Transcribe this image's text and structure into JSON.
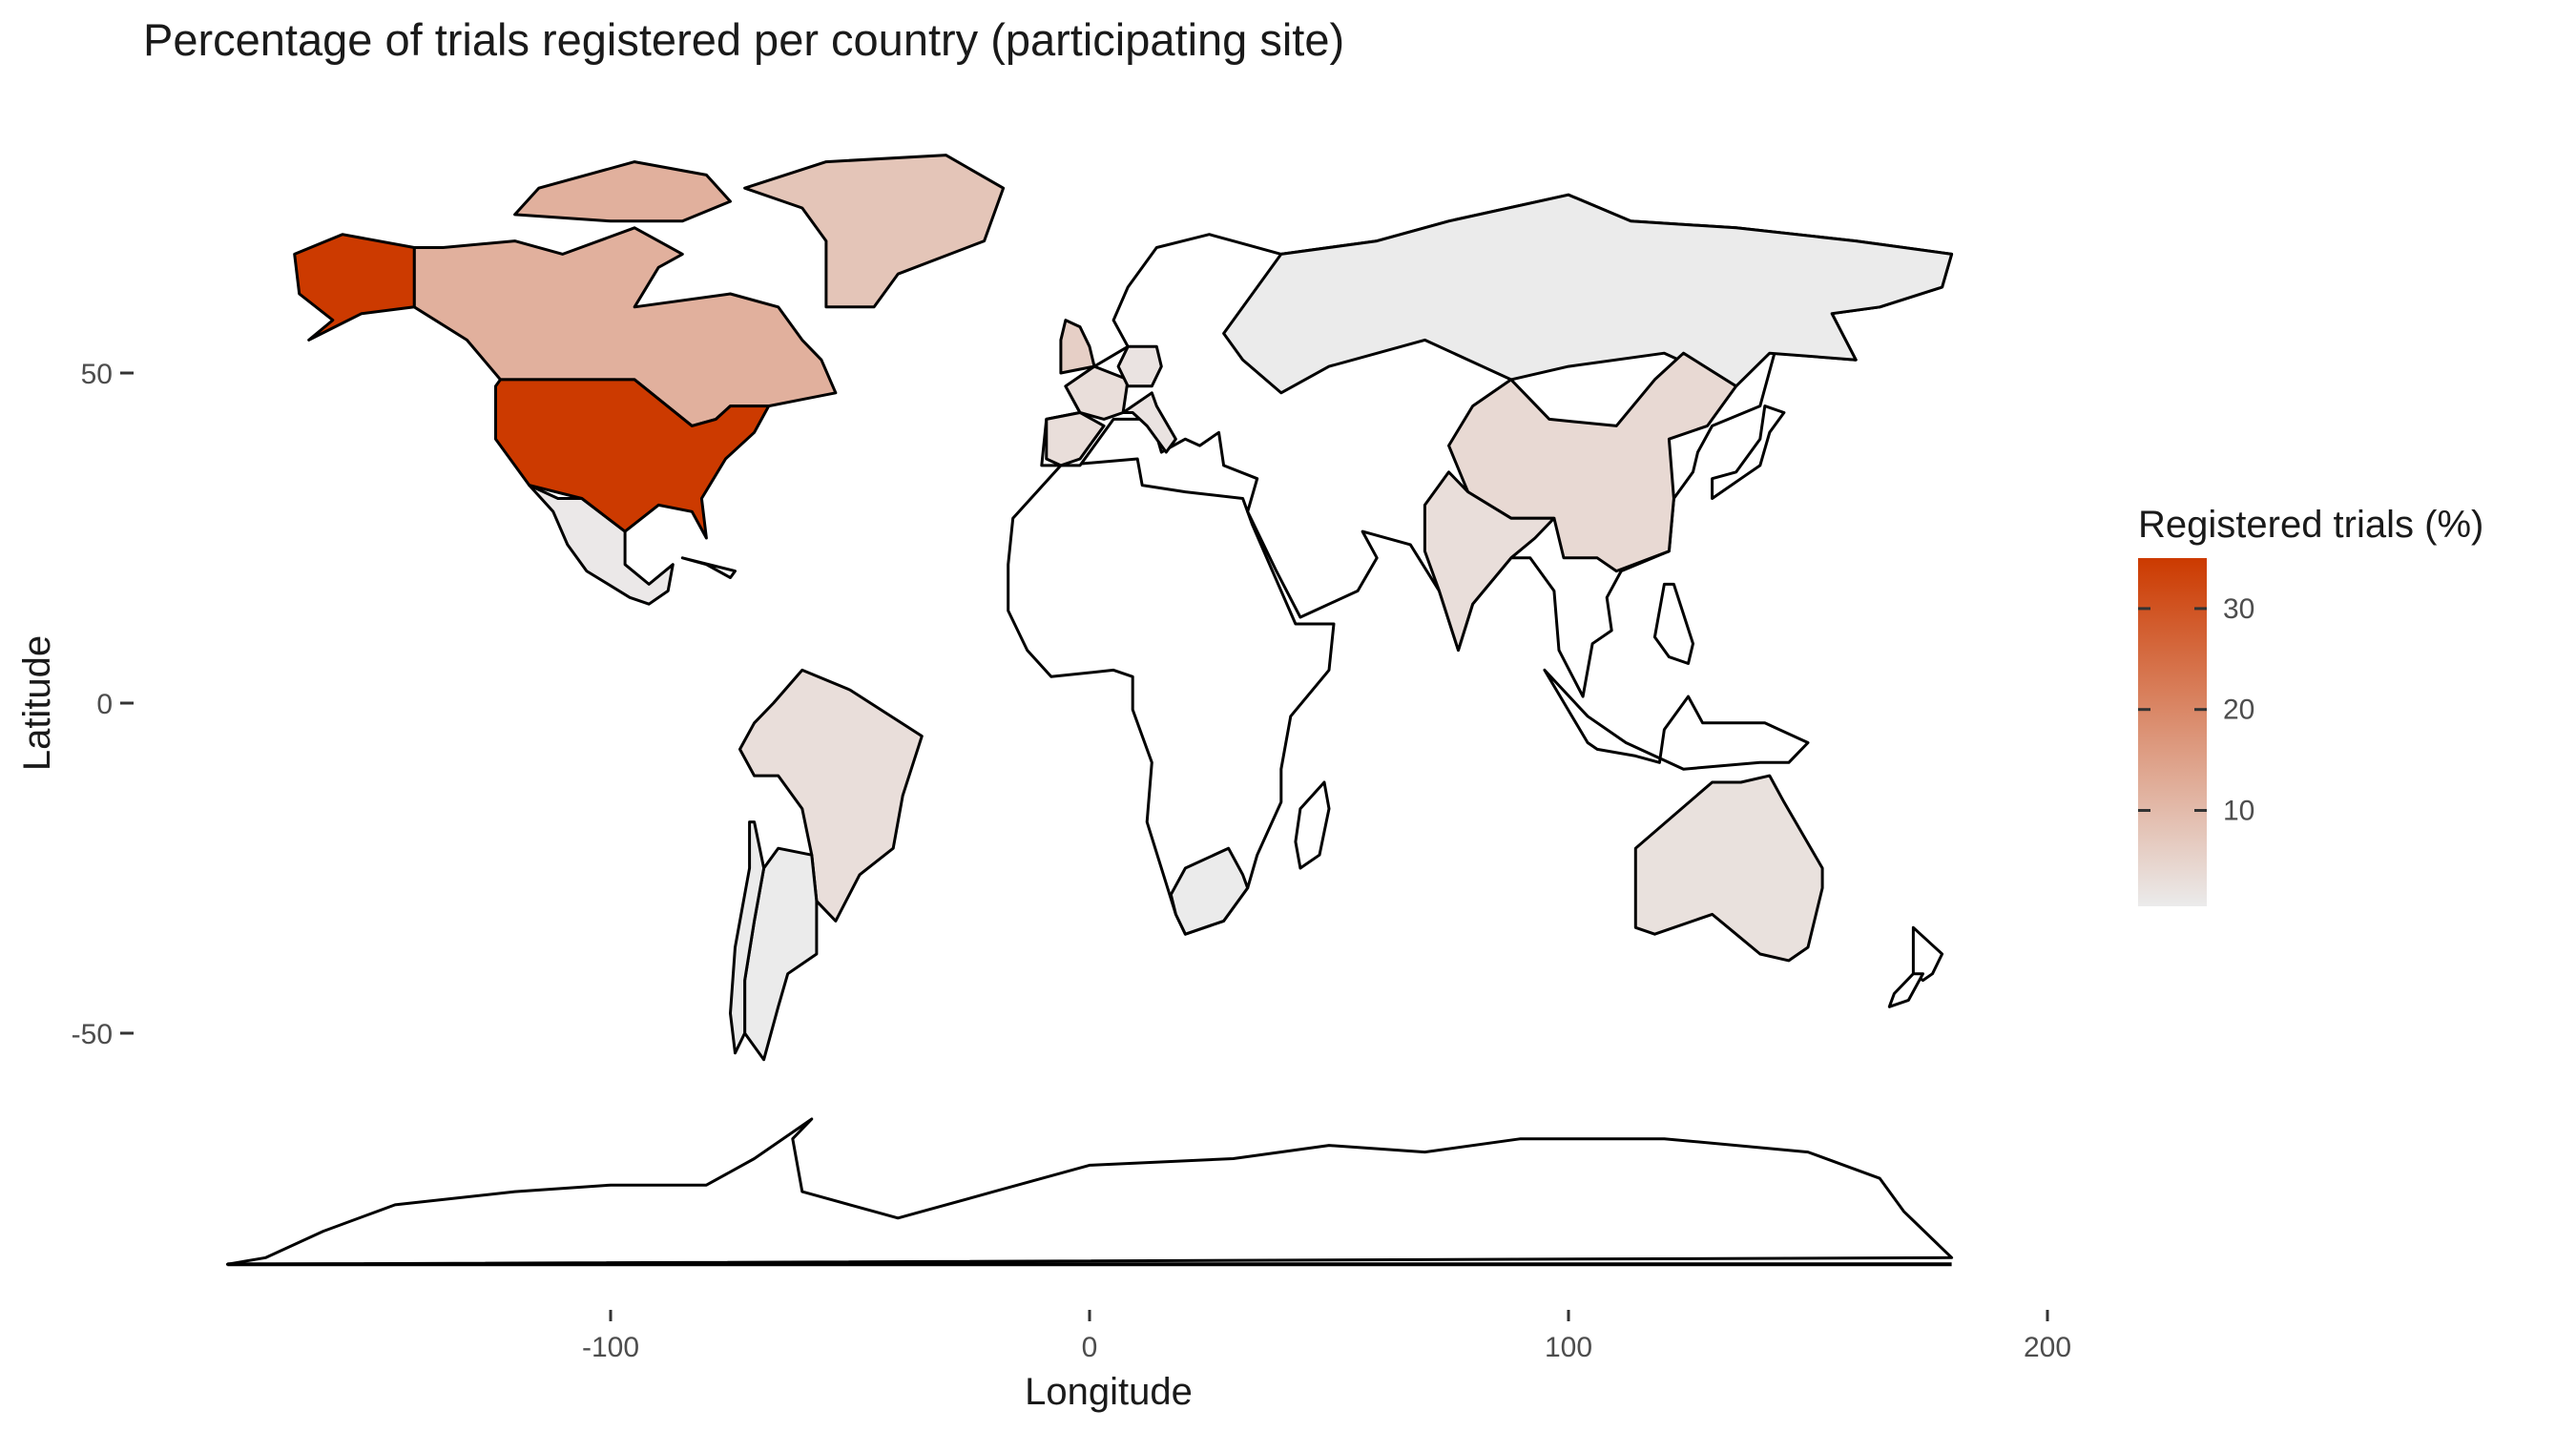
{
  "title": "Percentage of trials registered per country (participating site)",
  "axes": {
    "x": {
      "label": "Longitude",
      "ticks": [
        -100,
        0,
        100,
        200
      ],
      "tick_labels": [
        "-100",
        "0",
        "100",
        "200"
      ],
      "range": [
        -180,
        200
      ]
    },
    "y": {
      "label": "Latitude",
      "ticks": [
        50,
        0,
        -50
      ],
      "tick_labels": [
        "50",
        "0",
        "-50"
      ],
      "range": [
        -90,
        84
      ]
    }
  },
  "legend": {
    "title": "Registered trials (%)",
    "ticks": [
      10,
      20,
      30
    ],
    "tick_labels": [
      "10",
      "20",
      "30"
    ],
    "min": 0.5,
    "max": 35,
    "colors": {
      "low": "#ebebeb",
      "high": "#cc3a00"
    },
    "placement": "right"
  },
  "colors": {
    "outline": "#000000",
    "background": "#ffffff",
    "no_data": "#ffffff"
  },
  "chart_data": {
    "type": "choropleth",
    "variable": "Registered trials (%)",
    "regions": [
      {
        "name": "United States",
        "value": 35
      },
      {
        "name": "Canada",
        "value": 12
      },
      {
        "name": "Greenland",
        "value": 8
      },
      {
        "name": "China",
        "value": 4
      },
      {
        "name": "India",
        "value": 3
      },
      {
        "name": "Brazil",
        "value": 3
      },
      {
        "name": "Australia",
        "value": 2.5
      },
      {
        "name": "United Kingdom",
        "value": 6
      },
      {
        "name": "Spain",
        "value": 3
      },
      {
        "name": "France",
        "value": 3
      },
      {
        "name": "Germany",
        "value": 2
      },
      {
        "name": "Italy",
        "value": 2
      },
      {
        "name": "Russia",
        "value": 0.5
      },
      {
        "name": "Mexico",
        "value": 1
      },
      {
        "name": "Argentina",
        "value": 0.5
      },
      {
        "name": "Chile",
        "value": 0.5
      },
      {
        "name": "South Africa",
        "value": 0.5
      }
    ]
  }
}
